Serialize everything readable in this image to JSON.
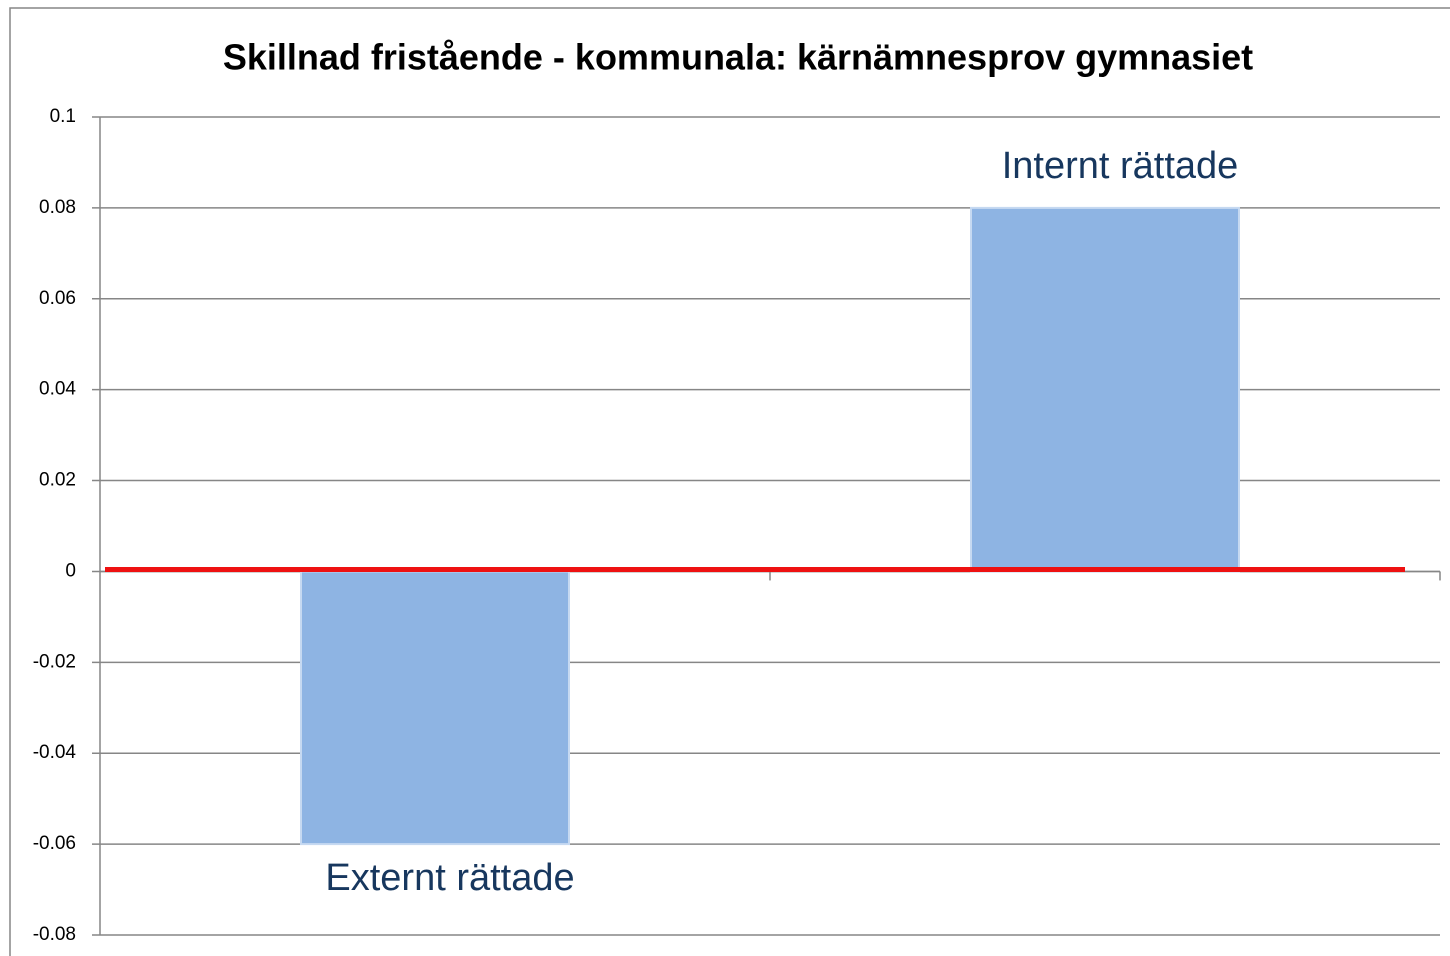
{
  "chart_data": {
    "type": "bar",
    "title": "Skillnad fristående - kommunala: kärnämnesprov gymnasiet",
    "categories": [
      "Externt rättade",
      "Internt rättade"
    ],
    "values": [
      -0.06,
      0.08
    ],
    "color": "#8eb4e3",
    "ylim": [
      -0.08,
      0.1
    ],
    "yticks": [
      -0.08,
      -0.06,
      -0.04,
      -0.02,
      0,
      0.02,
      0.04,
      0.06,
      0.08,
      0.1
    ],
    "grid": true,
    "reference_lines": [
      {
        "value": 0,
        "color": "#ee1111"
      }
    ]
  }
}
